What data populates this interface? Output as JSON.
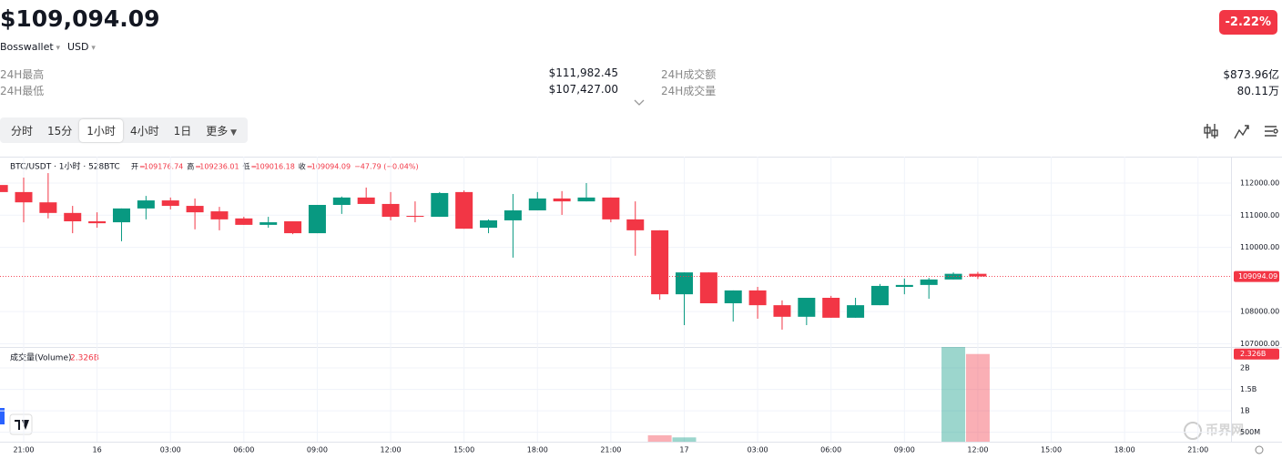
{
  "header": {
    "price": "$109,094.09",
    "wallet": "Bosswallet",
    "currency": "USD",
    "change": "-2.22%"
  },
  "stats": [
    {
      "label": "24H最高",
      "value": "$111,982.45"
    },
    {
      "label": "24H最低",
      "value": "$107,427.00"
    },
    {
      "label": "24H成交额",
      "value": "$873.96亿"
    },
    {
      "label": "24H成交量",
      "value": "80.11万"
    }
  ],
  "tabs": [
    "分时",
    "15分",
    "1小时",
    "4小时",
    "1日",
    "更多"
  ],
  "active_tab": 2,
  "chart_data": {
    "type": "candlestick",
    "symbol": "BTC/USDT · 1小时 · 528BTC",
    "legend": [
      {
        "label": "开",
        "value": 109176.74
      },
      {
        "label": "高",
        "value": 109236.01
      },
      {
        "label": "低",
        "value": 109016.18
      },
      {
        "label": "收",
        "value": 109094.09
      }
    ],
    "change_text": "−47.79 (−0.04%)",
    "up_color": "#089981",
    "down_color": "#f23645",
    "candles": [
      [
        111940,
        111990,
        111720,
        111720
      ],
      [
        111720,
        112170,
        110780,
        111400
      ],
      [
        111400,
        112310,
        110900,
        111070
      ],
      [
        111070,
        111290,
        110440,
        110810
      ],
      [
        110810,
        111090,
        110610,
        110750
      ],
      [
        110780,
        111210,
        110190,
        111210
      ],
      [
        111210,
        111600,
        110870,
        111460
      ],
      [
        111460,
        111550,
        111180,
        111290
      ],
      [
        111290,
        111520,
        110560,
        111090
      ],
      [
        111120,
        111260,
        110530,
        110870
      ],
      [
        110900,
        110950,
        110700,
        110700
      ],
      [
        110700,
        110950,
        110610,
        110780
      ],
      [
        110810,
        110810,
        110410,
        110440
      ],
      [
        110440,
        111320,
        110440,
        111320
      ],
      [
        111320,
        111580,
        111040,
        111550
      ],
      [
        111550,
        111860,
        111350,
        111350
      ],
      [
        111350,
        111720,
        110840,
        110950
      ],
      [
        110980,
        111430,
        110780,
        110950
      ],
      [
        110950,
        111720,
        110950,
        111690
      ],
      [
        111720,
        111770,
        110580,
        110580
      ],
      [
        110610,
        110870,
        110440,
        110840
      ],
      [
        110840,
        111660,
        109680,
        111150
      ],
      [
        111150,
        111720,
        111150,
        111520
      ],
      [
        111520,
        111750,
        111010,
        111430
      ],
      [
        111430,
        112000,
        111430,
        111550
      ],
      [
        111550,
        111550,
        110780,
        110870
      ],
      [
        110870,
        111430,
        109740,
        110530
      ],
      [
        110530,
        110530,
        108370,
        108540
      ],
      [
        108540,
        109220,
        107580,
        109220
      ],
      [
        109220,
        109220,
        108260,
        108260
      ],
      [
        108260,
        108660,
        107690,
        108660
      ],
      [
        108660,
        108770,
        107780,
        108200
      ],
      [
        108200,
        108350,
        107440,
        107840
      ],
      [
        107840,
        108430,
        107580,
        108430
      ],
      [
        108430,
        108490,
        107810,
        107810
      ],
      [
        107810,
        108430,
        107810,
        108200
      ],
      [
        108200,
        108860,
        108200,
        108800
      ],
      [
        108770,
        109030,
        108540,
        108830
      ],
      [
        108830,
        109050,
        108400,
        109000
      ],
      [
        109000,
        109220,
        109000,
        109177
      ],
      [
        109176.74,
        109236.01,
        109016.18,
        109094.09
      ]
    ],
    "ylim": [
      106900,
      112737
    ],
    "yticks": [
      {
        "value": 112000,
        "label": "112000.00"
      },
      {
        "value": 111000,
        "label": "111000.00"
      },
      {
        "value": 110000,
        "label": "110000.00"
      },
      {
        "value": 108000,
        "label": "108000.00"
      },
      {
        "value": 107000,
        "label": "107000.00"
      }
    ],
    "last_price": 109094.09,
    "xticks": [
      "21:00",
      "16",
      "03:00",
      "06:00",
      "09:00",
      "12:00",
      "15:00",
      "18:00",
      "21:00",
      "17",
      "03:00",
      "06:00",
      "09:00",
      "12:00",
      "15:00",
      "18:00",
      "21:00"
    ],
    "volume": {
      "title": "成交量(Volume)",
      "values": [
        null,
        null,
        null,
        null,
        null,
        null,
        null,
        null,
        null,
        null,
        null,
        null,
        null,
        null,
        null,
        null,
        null,
        null,
        null,
        null,
        null,
        null,
        null,
        null,
        null,
        null,
        null,
        0.43,
        0.38,
        null,
        null,
        null,
        null,
        null,
        null,
        null,
        null,
        null,
        null,
        2.49,
        2.326
      ],
      "last": 2.326,
      "last_label": "2.326B",
      "ylim": [
        0.28,
        2.49
      ],
      "yticks": [
        {
          "value": 2,
          "label": "2B"
        },
        {
          "value": 1.5,
          "label": "1.5B"
        },
        {
          "value": 1,
          "label": "1B"
        },
        {
          "value": 0.5,
          "label": "500M"
        }
      ]
    }
  },
  "watermark": "币界网"
}
